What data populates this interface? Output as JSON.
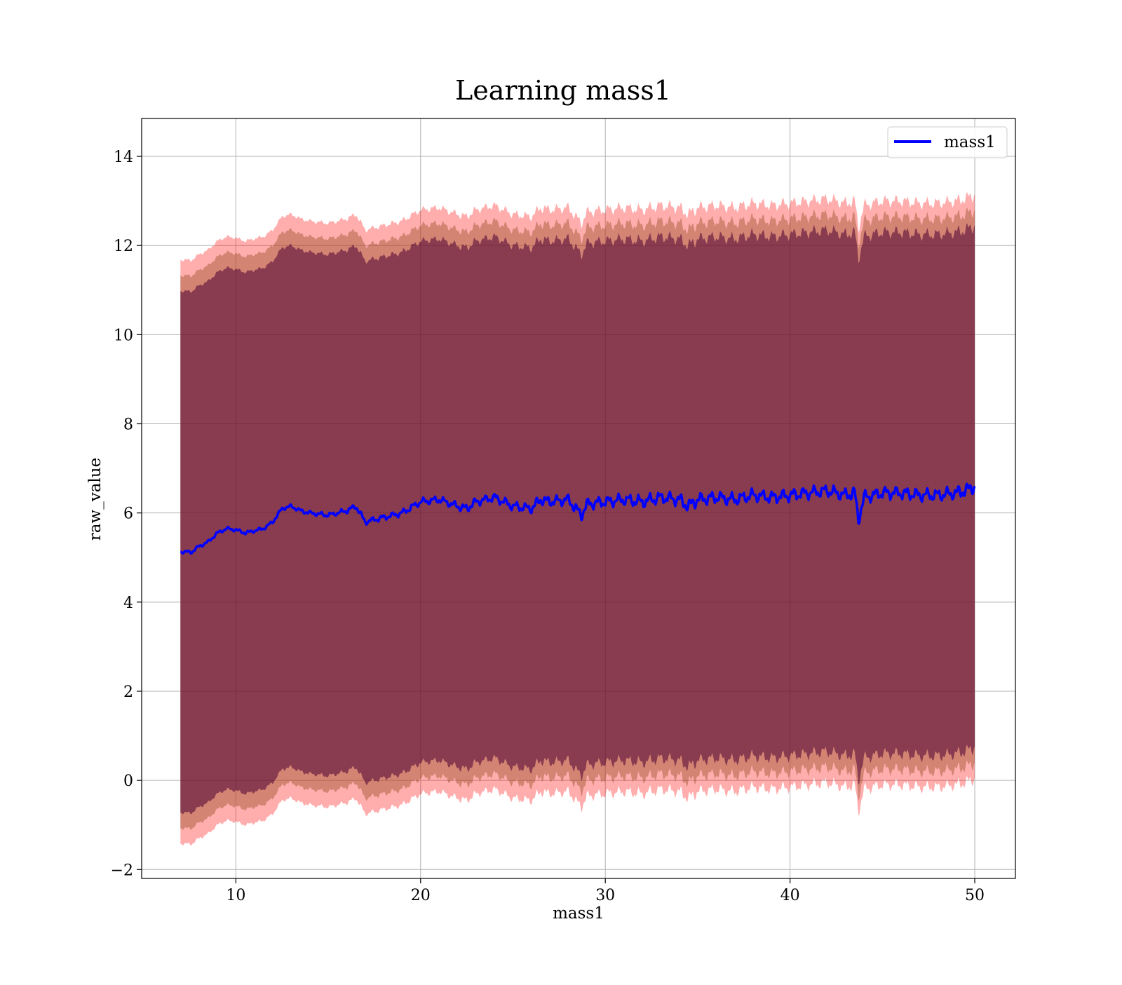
{
  "chart_data": {
    "type": "line",
    "title": "Learning mass1",
    "xlabel": "mass1",
    "ylabel": "raw_value",
    "xlim": [
      4.9,
      52.2
    ],
    "ylim": [
      -2.2,
      14.85
    ],
    "xticks": [
      10,
      20,
      30,
      40,
      50
    ],
    "yticks": [
      -2,
      0,
      2,
      4,
      6,
      8,
      10,
      12,
      14
    ],
    "ytick_labels": [
      "−2",
      "0",
      "2",
      "4",
      "6",
      "8",
      "10",
      "12",
      "14"
    ],
    "grid": true,
    "legend": {
      "position": "top-right",
      "entries": [
        "mass1"
      ]
    },
    "colors": {
      "line": "#0000ff",
      "band_outer": "#ff0000",
      "band_middle": "#a0522d",
      "band_inner": "#4b0033",
      "grid": "#b0b0b0"
    },
    "series": [
      {
        "name": "mass1",
        "x": [
          7.0,
          7.6,
          8.0,
          8.5,
          9.0,
          9.5,
          10.0,
          10.5,
          11.0,
          11.5,
          12.0,
          12.5,
          13.0,
          13.5,
          14.0,
          15.0,
          16.0,
          16.5,
          17.0,
          18.0,
          19.0,
          20.0,
          21.0,
          22.0,
          22.5,
          23.0,
          24.0,
          25.0,
          26.0,
          26.5,
          27.0,
          28.0,
          28.7,
          29.0,
          30.0,
          31.0,
          32.0,
          33.0,
          34.0,
          34.5,
          35.0,
          36.0,
          37.0,
          38.0,
          39.0,
          40.0,
          41.0,
          42.0,
          43.0,
          43.5,
          43.7,
          44.0,
          45.0,
          46.0,
          47.0,
          48.0,
          49.0,
          49.5,
          50.0
        ],
        "y": [
          5.13,
          5.12,
          5.25,
          5.35,
          5.55,
          5.65,
          5.62,
          5.55,
          5.6,
          5.65,
          5.8,
          6.1,
          6.15,
          6.05,
          6.0,
          5.95,
          6.05,
          6.15,
          5.8,
          5.9,
          6.0,
          6.25,
          6.3,
          6.15,
          6.1,
          6.25,
          6.35,
          6.15,
          6.1,
          6.3,
          6.25,
          6.3,
          5.95,
          6.2,
          6.25,
          6.3,
          6.25,
          6.35,
          6.3,
          6.15,
          6.3,
          6.35,
          6.3,
          6.4,
          6.35,
          6.4,
          6.45,
          6.5,
          6.4,
          6.45,
          5.85,
          6.35,
          6.45,
          6.45,
          6.4,
          6.4,
          6.45,
          6.5,
          6.6
        ]
      }
    ],
    "bands": [
      {
        "color": "band_outer",
        "offset_upper": 6.55,
        "offset_lower": -6.55
      },
      {
        "color": "band_middle",
        "offset_upper": 6.2,
        "offset_lower": -6.2
      },
      {
        "color": "band_inner",
        "offset_upper": 5.85,
        "offset_lower": -5.85
      }
    ]
  }
}
